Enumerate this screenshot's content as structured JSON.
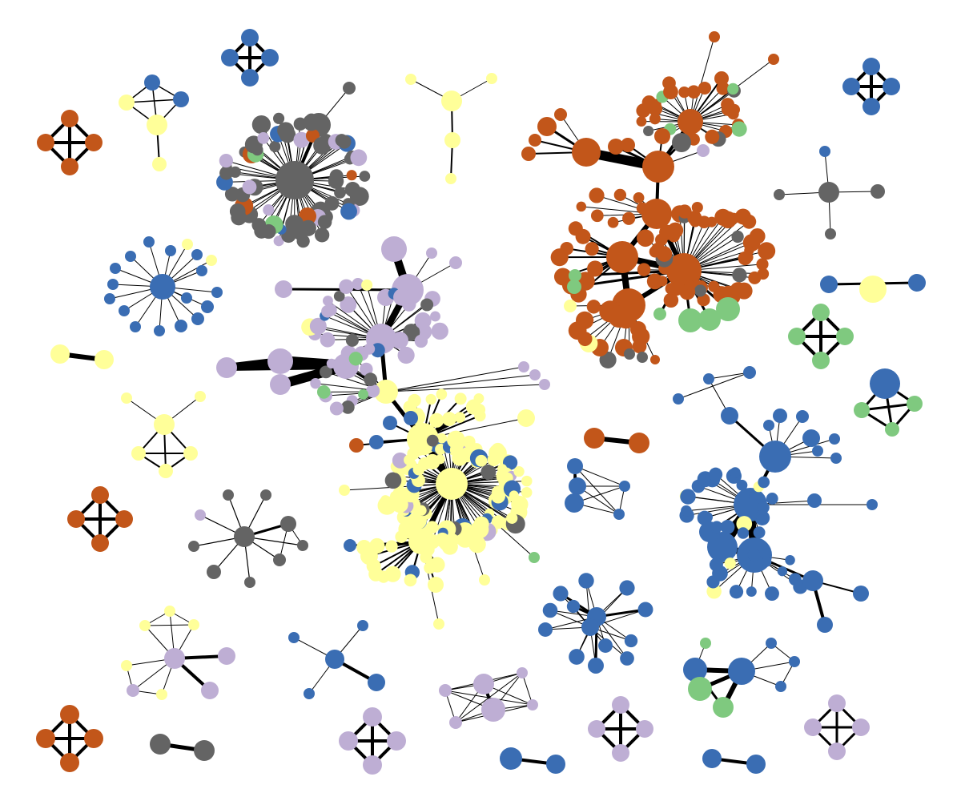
{
  "diagram": {
    "type": "network-graph",
    "colors": {
      "orange": "#c2561a",
      "blue": "#3a6db3",
      "gray": "#646464",
      "yellow": "#ffff99",
      "purple": "#beaed4",
      "green": "#7fc97f",
      "background": "#ffffff",
      "edge": "#000000"
    },
    "legend": "none",
    "title": ""
  }
}
